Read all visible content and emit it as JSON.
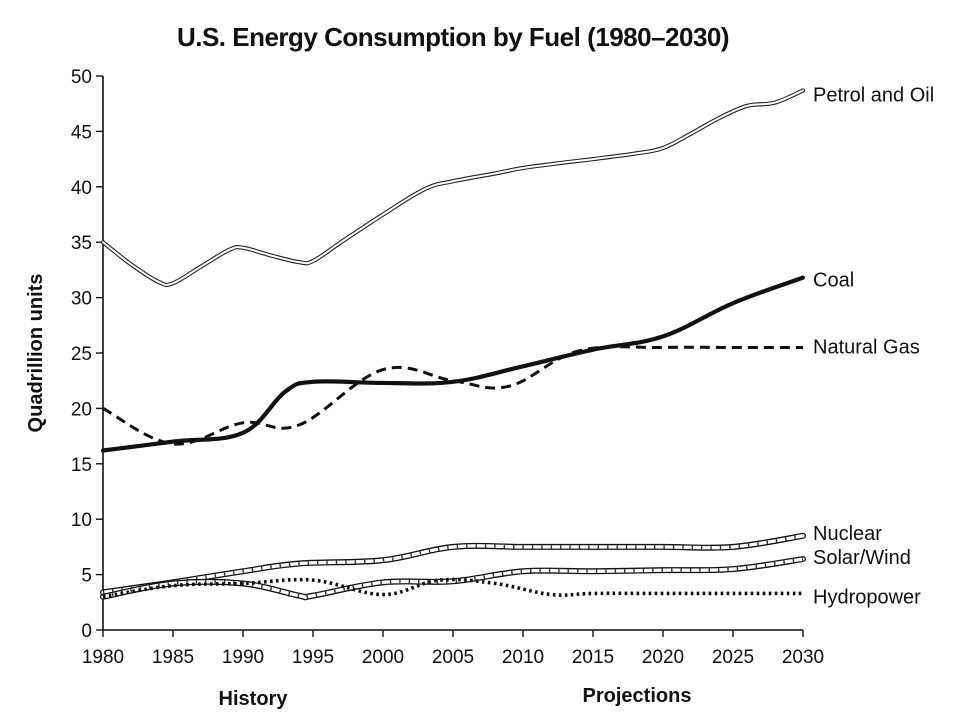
{
  "chart_data": {
    "type": "line",
    "title": "U.S. Energy Consumption by Fuel (1980–2030)",
    "xlabel": "",
    "ylabel": "Quadrillion units",
    "period_labels": {
      "history": "History",
      "projections": "Projections"
    },
    "xlim": [
      1980,
      2030
    ],
    "ylim": [
      0,
      50
    ],
    "xticks": [
      1980,
      1985,
      1990,
      1995,
      2000,
      2005,
      2010,
      2015,
      2020,
      2025,
      2030
    ],
    "yticks": [
      0,
      5,
      10,
      15,
      20,
      25,
      30,
      35,
      40,
      45,
      50
    ],
    "grid": false,
    "legend": "inline-right",
    "series": [
      {
        "name": "Petrol and Oil",
        "style": "double",
        "x": [
          1980,
          1982,
          1984,
          1985,
          1987,
          1989,
          1990,
          1992,
          1994,
          1995,
          1997,
          2000,
          2003,
          2005,
          2008,
          2010,
          2013,
          2015,
          2018,
          2020,
          2022,
          2024,
          2026,
          2028,
          2030
        ],
        "y": [
          35,
          33,
          31.4,
          31.3,
          32.8,
          34.3,
          34.5,
          33.8,
          33.2,
          33.3,
          35,
          37.5,
          39.8,
          40.5,
          41.2,
          41.7,
          42.2,
          42.5,
          43,
          43.5,
          44.8,
          46.2,
          47.3,
          47.6,
          48.7
        ]
      },
      {
        "name": "Coal",
        "style": "solid-bold",
        "x": [
          1980,
          1985,
          1990,
          1993,
          1995,
          2000,
          2005,
          2010,
          2015,
          2020,
          2025,
          2030
        ],
        "y": [
          16.2,
          17,
          17.8,
          21.5,
          22.4,
          22.3,
          22.4,
          23.8,
          25.3,
          26.5,
          29.5,
          31.8
        ]
      },
      {
        "name": "Natural Gas",
        "style": "dashed",
        "x": [
          1980,
          1985,
          1990,
          1994,
          2000,
          2005,
          2009,
          2014,
          2020,
          2025,
          2030
        ],
        "y": [
          20,
          16.8,
          18.7,
          18.5,
          23.5,
          22.5,
          22,
          25.2,
          25.5,
          25.5,
          25.5
        ]
      },
      {
        "name": "Nuclear",
        "style": "hatched",
        "x": [
          1980,
          1985,
          1990,
          1994,
          2000,
          2005,
          2010,
          2015,
          2020,
          2025,
          2030
        ],
        "y": [
          3.4,
          4.3,
          5.3,
          6,
          6.3,
          7.5,
          7.5,
          7.5,
          7.5,
          7.5,
          8.5
        ]
      },
      {
        "name": "Solar/Wind",
        "style": "hatched",
        "x": [
          1980,
          1985,
          1990,
          1994,
          1995,
          2000,
          2005,
          2010,
          2015,
          2020,
          2025,
          2030
        ],
        "y": [
          3,
          4.2,
          4.2,
          3.1,
          3.1,
          4.3,
          4.4,
          5.3,
          5.3,
          5.4,
          5.5,
          6.4
        ]
      },
      {
        "name": "Hydropower",
        "style": "dotted",
        "x": [
          1980,
          1985,
          1990,
          1995,
          2000,
          2004,
          2008,
          2012,
          2015,
          2020,
          2025,
          2030
        ],
        "y": [
          3,
          4,
          4.2,
          4.5,
          3.2,
          4.5,
          4.2,
          3.2,
          3.3,
          3.3,
          3.3,
          3.3
        ]
      }
    ]
  }
}
